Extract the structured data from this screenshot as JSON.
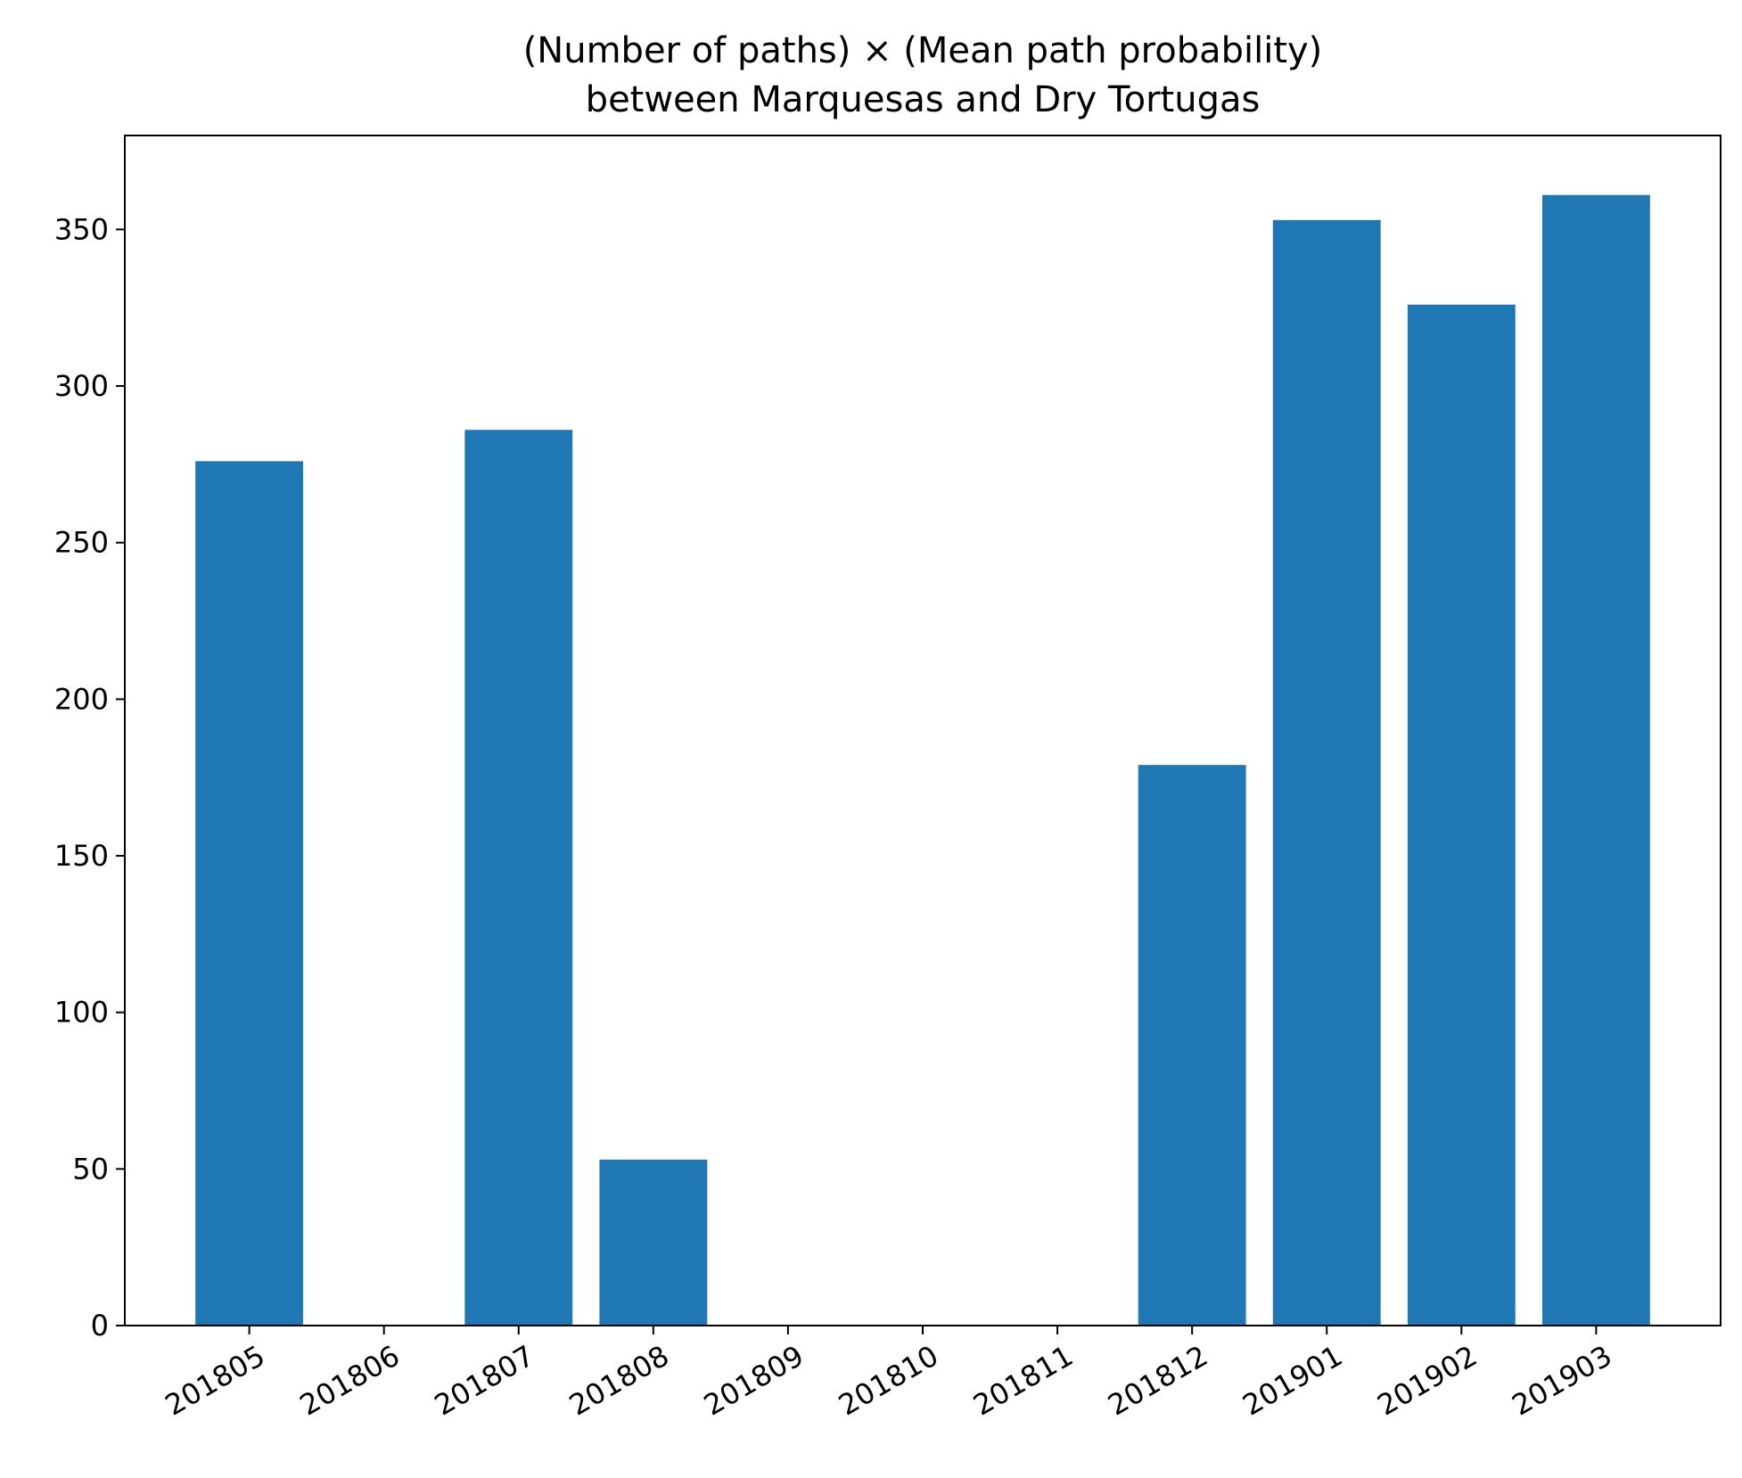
{
  "chart_data": {
    "type": "bar",
    "title": "(Number of paths) × (Mean path probability)",
    "subtitle": "between Marquesas and Dry Tortugas",
    "xlabel": "",
    "ylabel": "",
    "categories": [
      "201805",
      "201806",
      "201807",
      "201808",
      "201809",
      "201810",
      "201811",
      "201812",
      "201901",
      "201902",
      "201903"
    ],
    "values": [
      276,
      0,
      286,
      53,
      0,
      0,
      0,
      179,
      353,
      326,
      361
    ],
    "ylim": [
      0,
      380
    ],
    "yticks": [
      0,
      50,
      100,
      150,
      200,
      250,
      300,
      350
    ],
    "bar_color": "#1f77b4",
    "grid": false,
    "legend": "none"
  }
}
